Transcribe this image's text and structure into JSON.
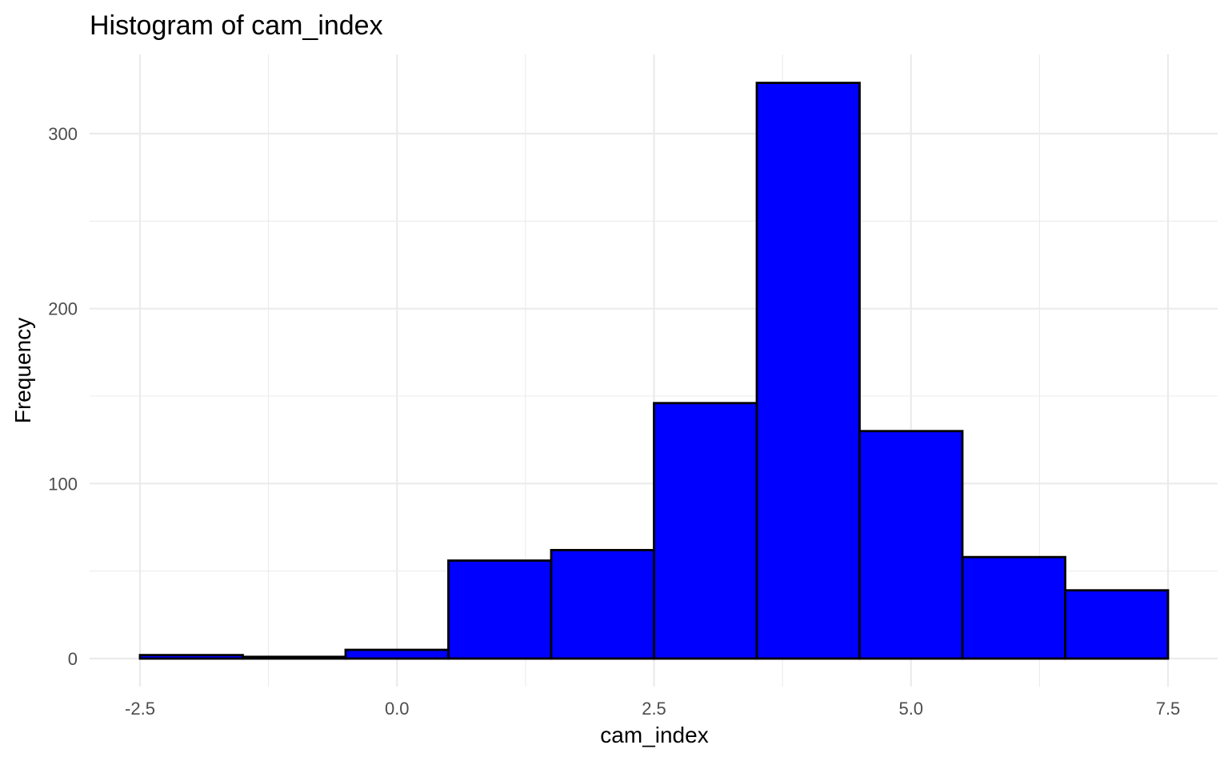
{
  "chart_data": {
    "type": "bar",
    "title": "Histogram of cam_index",
    "xlabel": "cam_index",
    "ylabel": "Frequency",
    "bin_width": 1,
    "bins": [
      {
        "x_start": -2.5,
        "x_end": -1.5,
        "count": 2
      },
      {
        "x_start": -1.5,
        "x_end": -0.5,
        "count": 1
      },
      {
        "x_start": -0.5,
        "x_end": 0.5,
        "count": 5
      },
      {
        "x_start": 0.5,
        "x_end": 1.5,
        "count": 56
      },
      {
        "x_start": 1.5,
        "x_end": 2.5,
        "count": 62
      },
      {
        "x_start": 2.5,
        "x_end": 3.5,
        "count": 146
      },
      {
        "x_start": 3.5,
        "x_end": 4.5,
        "count": 329
      },
      {
        "x_start": 4.5,
        "x_end": 5.5,
        "count": 130
      },
      {
        "x_start": 5.5,
        "x_end": 6.5,
        "count": 58
      },
      {
        "x_start": 6.5,
        "x_end": 7.5,
        "count": 39
      }
    ],
    "xlim": [
      -2.5,
      7.5
    ],
    "ylim": [
      0,
      345
    ],
    "x_ticks": [
      -2.5,
      0.0,
      2.5,
      5.0,
      7.5
    ],
    "x_tick_labels": [
      "-2.5",
      "0.0",
      "2.5",
      "5.0",
      "7.5"
    ],
    "y_ticks": [
      0,
      100,
      200,
      300
    ],
    "y_tick_labels": [
      "0",
      "100",
      "200",
      "300"
    ],
    "bar_fill": "#0000ff",
    "bar_outline": "#000000",
    "grid": true,
    "legend": "none"
  }
}
